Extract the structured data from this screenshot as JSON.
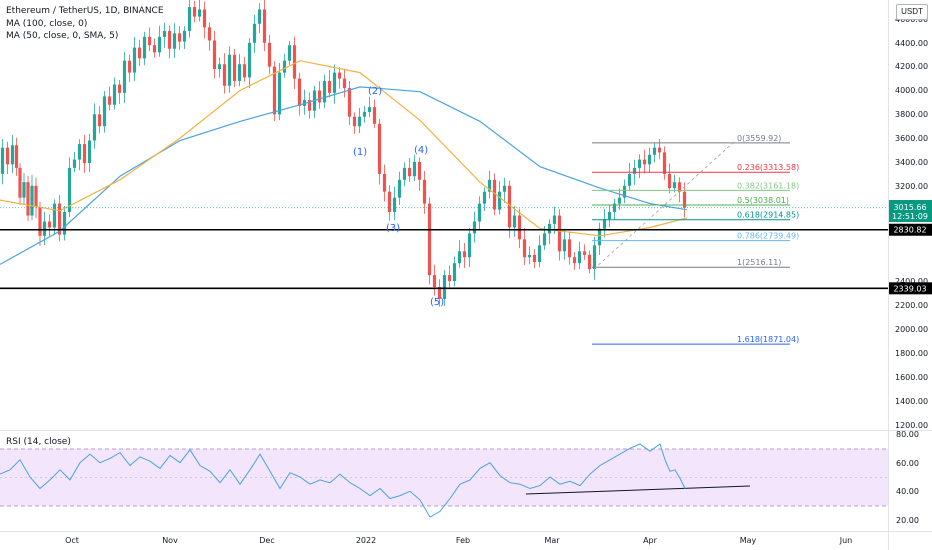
{
  "header": {
    "symbol": "Ethereum / TetherUS, 1D, BINANCE",
    "ma100": "MA (100, close, 0)",
    "ma50": "MA (50, close, 0, SMA, 5)",
    "currency": "USDT"
  },
  "rsi_panel": {
    "label": "RSI (14, close)",
    "ticks": [
      "80.00",
      "60.00",
      "40.00",
      "20.00"
    ]
  },
  "price_axis": {
    "ticks": [
      "4600.00",
      "4400.00",
      "4200.00",
      "4000.00",
      "3800.00",
      "3600.00",
      "3400.00",
      "3200.00",
      "2400.00",
      "2200.00",
      "2000.00",
      "1800.00",
      "1600.00",
      "1400.00",
      "1200.00"
    ]
  },
  "time_axis": {
    "ticks": [
      "Oct",
      "Nov",
      "Dec",
      "2022",
      "Feb",
      "Mar",
      "Apr",
      "May",
      "Jun"
    ]
  },
  "price_tags": {
    "current": "3015.66",
    "countdown": "12:51:09",
    "support_upper": "2830.82",
    "support_lower": "2339.03"
  },
  "colors": {
    "bull": "#26a69a",
    "bear": "#ef5350",
    "ma100": "#4aa3df",
    "ma50": "#f5b041",
    "rsi_line": "#4aa3df",
    "rsi_band": "#f3e5fb",
    "fib_0": "#787b86",
    "fib_236": "#f23645",
    "fib_382": "#81c784",
    "fib_05": "#4caf50",
    "fib_618": "#009688",
    "fib_786": "#64b5f6",
    "fib_1": "#787b86",
    "fib_1618": "#2962ff"
  },
  "fib_levels": [
    {
      "label": "0(3559.92)",
      "price": 3559.92,
      "color": "#787b86"
    },
    {
      "label": "0.236(3313.58)",
      "price": 3313.58,
      "color": "#f23645"
    },
    {
      "label": "0.382(3161.18)",
      "price": 3161.18,
      "color": "#81c784"
    },
    {
      "label": "0.5(3038.01)",
      "price": 3038.01,
      "color": "#4caf50"
    },
    {
      "label": "0.618(2914.85)",
      "price": 2914.85,
      "color": "#009688"
    },
    {
      "label": "0.786(2739.49)",
      "price": 2739.49,
      "color": "#64b5f6"
    },
    {
      "label": "1(2516.11)",
      "price": 2516.11,
      "color": "#787b86"
    },
    {
      "label": "1.618(1871.04)",
      "price": 1871.04,
      "color": "#2962ff"
    }
  ],
  "wave_labels": [
    "(1)",
    "(2)",
    "(3)",
    "(4)",
    "(5)"
  ],
  "chart_data": {
    "type": "candlestick",
    "title": "Ethereum / TetherUS, 1D, BINANCE",
    "y_unit": "USDT",
    "ylim": [
      1150,
      4700
    ],
    "rsi_ylim": [
      15,
      82
    ],
    "horizontal_lines": [
      2830.82,
      2339.03
    ],
    "price_path": [
      [
        0,
        3300
      ],
      [
        5,
        3520
      ],
      [
        10,
        3380
      ],
      [
        15,
        3540
      ],
      [
        18,
        3350
      ],
      [
        22,
        3100
      ],
      [
        26,
        3230
      ],
      [
        30,
        2950
      ],
      [
        34,
        3200
      ],
      [
        38,
        3020
      ],
      [
        42,
        2780
      ],
      [
        47,
        2900
      ],
      [
        52,
        2850
      ],
      [
        57,
        3050
      ],
      [
        62,
        2790
      ],
      [
        67,
        2980
      ],
      [
        72,
        3350
      ],
      [
        77,
        3420
      ],
      [
        82,
        3550
      ],
      [
        87,
        3390
      ],
      [
        92,
        3580
      ],
      [
        97,
        3800
      ],
      [
        102,
        3700
      ],
      [
        107,
        3950
      ],
      [
        112,
        3880
      ],
      [
        117,
        4050
      ],
      [
        122,
        3980
      ],
      [
        127,
        4250
      ],
      [
        132,
        4150
      ],
      [
        137,
        4360
      ],
      [
        142,
        4270
      ],
      [
        147,
        4450
      ],
      [
        152,
        4380
      ],
      [
        157,
        4320
      ],
      [
        162,
        4450
      ],
      [
        167,
        4500
      ],
      [
        172,
        4350
      ],
      [
        177,
        4480
      ],
      [
        182,
        4410
      ],
      [
        187,
        4500
      ],
      [
        192,
        4700
      ],
      [
        197,
        4620
      ],
      [
        202,
        4680
      ],
      [
        207,
        4530
      ],
      [
        212,
        4420
      ],
      [
        217,
        4180
      ],
      [
        222,
        4220
      ],
      [
        227,
        4040
      ],
      [
        232,
        4300
      ],
      [
        237,
        4080
      ],
      [
        242,
        4220
      ],
      [
        247,
        4110
      ],
      [
        252,
        4400
      ],
      [
        257,
        4560
      ],
      [
        262,
        4680
      ],
      [
        267,
        4400
      ],
      [
        272,
        4200
      ],
      [
        277,
        3800
      ],
      [
        282,
        4150
      ],
      [
        287,
        4250
      ],
      [
        292,
        4380
      ],
      [
        297,
        4100
      ],
      [
        302,
        3870
      ],
      [
        307,
        3920
      ],
      [
        312,
        3830
      ],
      [
        317,
        4000
      ],
      [
        322,
        3900
      ],
      [
        327,
        4080
      ],
      [
        332,
        3980
      ],
      [
        337,
        4150
      ],
      [
        342,
        4100
      ],
      [
        347,
        4020
      ],
      [
        352,
        3780
      ],
      [
        357,
        3700
      ],
      [
        362,
        3780
      ],
      [
        367,
        3820
      ],
      [
        372,
        3860
      ],
      [
        377,
        3720
      ],
      [
        382,
        3300
      ],
      [
        387,
        3150
      ],
      [
        392,
        2980
      ],
      [
        397,
        3100
      ],
      [
        402,
        3250
      ],
      [
        407,
        3350
      ],
      [
        412,
        3280
      ],
      [
        417,
        3400
      ],
      [
        422,
        3250
      ],
      [
        427,
        3050
      ],
      [
        432,
        2450
      ],
      [
        437,
        2350
      ],
      [
        442,
        2250
      ],
      [
        447,
        2450
      ],
      [
        452,
        2400
      ],
      [
        457,
        2550
      ],
      [
        462,
        2650
      ],
      [
        467,
        2600
      ],
      [
        472,
        2800
      ],
      [
        477,
        2900
      ],
      [
        482,
        3050
      ],
      [
        487,
        3150
      ],
      [
        492,
        3250
      ],
      [
        497,
        3000
      ],
      [
        502,
        3150
      ],
      [
        507,
        3200
      ],
      [
        512,
        2850
      ],
      [
        517,
        2950
      ],
      [
        522,
        2750
      ],
      [
        527,
        2600
      ],
      [
        532,
        2620
      ],
      [
        537,
        2560
      ],
      [
        542,
        2700
      ],
      [
        547,
        2800
      ],
      [
        552,
        2880
      ],
      [
        557,
        2950
      ],
      [
        562,
        2650
      ],
      [
        567,
        2750
      ],
      [
        572,
        2600
      ],
      [
        577,
        2550
      ],
      [
        582,
        2650
      ],
      [
        587,
        2620
      ],
      [
        592,
        2500
      ],
      [
        597,
        2700
      ],
      [
        602,
        2840
      ],
      [
        607,
        2920
      ],
      [
        612,
        2980
      ],
      [
        617,
        3050
      ],
      [
        622,
        3100
      ],
      [
        627,
        3200
      ],
      [
        632,
        3300
      ],
      [
        637,
        3350
      ],
      [
        642,
        3420
      ],
      [
        647,
        3380
      ],
      [
        652,
        3460
      ],
      [
        657,
        3520
      ],
      [
        662,
        3480
      ],
      [
        667,
        3300
      ],
      [
        672,
        3180
      ],
      [
        677,
        3230
      ],
      [
        682,
        3150
      ],
      [
        687,
        3015.66
      ]
    ],
    "ma100_path": [
      [
        0,
        2540
      ],
      [
        60,
        2820
      ],
      [
        120,
        3280
      ],
      [
        180,
        3580
      ],
      [
        240,
        3740
      ],
      [
        300,
        3880
      ],
      [
        360,
        4030
      ],
      [
        420,
        3990
      ],
      [
        480,
        3740
      ],
      [
        540,
        3360
      ],
      [
        600,
        3180
      ],
      [
        650,
        3050
      ],
      [
        687,
        2998
      ]
    ],
    "ma50_path": [
      [
        0,
        3080
      ],
      [
        60,
        2990
      ],
      [
        120,
        3250
      ],
      [
        180,
        3600
      ],
      [
        240,
        4000
      ],
      [
        300,
        4250
      ],
      [
        360,
        4150
      ],
      [
        420,
        3750
      ],
      [
        480,
        3230
      ],
      [
        540,
        2840
      ],
      [
        600,
        2780
      ],
      [
        650,
        2850
      ],
      [
        687,
        2930
      ]
    ],
    "rsi_path": [
      [
        0,
        52
      ],
      [
        10,
        55
      ],
      [
        20,
        62
      ],
      [
        30,
        50
      ],
      [
        40,
        42
      ],
      [
        50,
        48
      ],
      [
        60,
        55
      ],
      [
        70,
        48
      ],
      [
        80,
        60
      ],
      [
        90,
        66
      ],
      [
        100,
        60
      ],
      [
        110,
        63
      ],
      [
        120,
        67
      ],
      [
        130,
        58
      ],
      [
        140,
        64
      ],
      [
        150,
        61
      ],
      [
        160,
        56
      ],
      [
        170,
        65
      ],
      [
        180,
        60
      ],
      [
        190,
        69
      ],
      [
        200,
        58
      ],
      [
        210,
        54
      ],
      [
        220,
        46
      ],
      [
        230,
        55
      ],
      [
        240,
        45
      ],
      [
        250,
        55
      ],
      [
        260,
        66
      ],
      [
        270,
        54
      ],
      [
        280,
        42
      ],
      [
        290,
        53
      ],
      [
        300,
        50
      ],
      [
        310,
        45
      ],
      [
        320,
        48
      ],
      [
        330,
        46
      ],
      [
        340,
        52
      ],
      [
        350,
        46
      ],
      [
        360,
        42
      ],
      [
        370,
        37
      ],
      [
        380,
        42
      ],
      [
        390,
        35
      ],
      [
        400,
        37
      ],
      [
        410,
        40
      ],
      [
        420,
        34
      ],
      [
        430,
        22
      ],
      [
        440,
        26
      ],
      [
        450,
        35
      ],
      [
        460,
        45
      ],
      [
        470,
        48
      ],
      [
        480,
        56
      ],
      [
        490,
        60
      ],
      [
        500,
        51
      ],
      [
        510,
        46
      ],
      [
        520,
        45
      ],
      [
        530,
        42
      ],
      [
        540,
        44
      ],
      [
        550,
        50
      ],
      [
        560,
        45
      ],
      [
        570,
        47
      ],
      [
        580,
        44
      ],
      [
        590,
        52
      ],
      [
        600,
        58
      ],
      [
        610,
        62
      ],
      [
        620,
        66
      ],
      [
        630,
        70
      ],
      [
        640,
        73
      ],
      [
        650,
        68
      ],
      [
        660,
        73
      ],
      [
        665,
        62
      ],
      [
        670,
        54
      ],
      [
        675,
        55
      ],
      [
        680,
        49
      ],
      [
        685,
        42
      ]
    ]
  }
}
